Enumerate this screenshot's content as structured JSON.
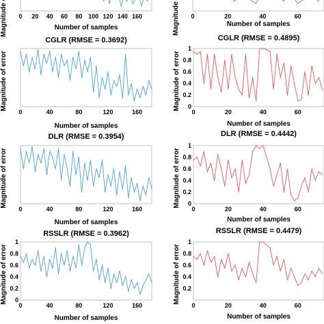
{
  "chart_data": [
    {
      "id": "top-left-partial",
      "type": "line",
      "title": "",
      "xlabel": "Number of samples",
      "ylabel": "",
      "xlim": [
        0,
        180
      ],
      "ylim": [
        0,
        1
      ],
      "xticks": [
        0,
        20,
        40,
        60,
        80,
        100,
        120,
        140,
        160
      ],
      "yticks": [],
      "series": [
        {
          "color": "#4a9fdc",
          "x": [
            110,
            114,
            118,
            122,
            126,
            130,
            134,
            138,
            142,
            146,
            150,
            154,
            158,
            162,
            166,
            170,
            174,
            178
          ],
          "y": [
            0.8,
            0.4,
            0.7,
            0.3,
            0.9,
            0.5,
            0.7,
            0.2,
            0.6,
            0.4,
            0.8,
            0.3,
            0.5,
            0.7,
            0.2,
            0.6,
            0.4,
            0.8
          ]
        }
      ]
    },
    {
      "id": "top-right-partial",
      "type": "line",
      "title": "",
      "xlabel": "Number of samples",
      "ylabel": "",
      "xlim": [
        0,
        75
      ],
      "ylim": [
        0,
        1
      ],
      "xticks": [
        0,
        20,
        40,
        60
      ],
      "yticks": [],
      "series": [
        {
          "color": "#e05a5a",
          "x": [
            20,
            24,
            28,
            32,
            36,
            40,
            44,
            48,
            52,
            56,
            60,
            64,
            68,
            72
          ],
          "y": [
            0.6,
            0.4,
            0.7,
            0.5,
            0.3,
            0.8,
            0.5,
            0.6,
            0.4,
            0.7,
            0.3,
            0.5,
            0.6,
            0.4
          ]
        }
      ]
    },
    {
      "id": "cglr-left",
      "type": "line",
      "title": "CGLR (RMSE = 0.3692)",
      "xlabel": "Number of samples",
      "ylabel": "Magnitude of error",
      "xlim": [
        0,
        180
      ],
      "ylim": [
        0,
        1
      ],
      "xticks": [
        0,
        40,
        80,
        120,
        160
      ],
      "yticks": [],
      "series": [
        {
          "color": "#4a9fdc",
          "x": [
            0,
            4,
            8,
            12,
            16,
            20,
            24,
            28,
            32,
            36,
            40,
            44,
            48,
            52,
            56,
            60,
            64,
            68,
            72,
            76,
            80,
            84,
            88,
            92,
            96,
            100,
            104,
            108,
            112,
            116,
            120,
            124,
            128,
            132,
            136,
            140,
            144,
            148,
            152,
            156,
            160,
            164,
            168,
            172,
            176,
            180
          ],
          "y": [
            0.95,
            0.7,
            0.9,
            0.6,
            0.85,
            0.65,
            0.98,
            0.55,
            0.9,
            0.75,
            0.95,
            0.6,
            0.85,
            0.5,
            0.9,
            0.7,
            0.8,
            0.45,
            0.85,
            0.65,
            0.95,
            0.5,
            0.8,
            0.6,
            0.85,
            0.25,
            0.7,
            0.15,
            0.5,
            0.3,
            0.6,
            0.2,
            0.45,
            0.35,
            0.55,
            0.15,
            0.9,
            0.2,
            0.4,
            0.1,
            0.3,
            0.15,
            0.35,
            0.2,
            0.45,
            0.3
          ]
        }
      ]
    },
    {
      "id": "cglr-right",
      "type": "line",
      "title": "CGLR (RMSE = 0.4895)",
      "xlabel": "Number of samples",
      "ylabel": "Magnitude of error",
      "xlim": [
        0,
        75
      ],
      "ylim": [
        0,
        1
      ],
      "xticks": [
        0,
        20,
        40,
        60
      ],
      "yticks": [
        0,
        0.2,
        0.4,
        0.6,
        0.8,
        1
      ],
      "series": [
        {
          "color": "#e05a5a",
          "x": [
            0,
            2,
            4,
            6,
            8,
            10,
            12,
            14,
            16,
            18,
            20,
            22,
            24,
            26,
            28,
            30,
            32,
            34,
            36,
            38,
            40,
            42,
            44,
            46,
            48,
            50,
            52,
            54,
            56,
            58,
            60,
            62,
            64,
            66,
            68,
            70,
            72,
            74
          ],
          "y": [
            0.95,
            0.9,
            0.95,
            0.4,
            0.9,
            0.3,
            0.9,
            0.5,
            0.25,
            0.8,
            0.3,
            0.9,
            0.5,
            0.3,
            0.2,
            0.9,
            0.15,
            0.5,
            0.1,
            1.0,
            1.0,
            0.98,
            0.95,
            0.3,
            0.9,
            0.5,
            0.75,
            0.2,
            0.7,
            0.4,
            0.1,
            0.12,
            0.6,
            0.2,
            0.7,
            0.4,
            0.5,
            0.3
          ]
        }
      ]
    },
    {
      "id": "dlr-left",
      "type": "line",
      "title": "DLR (RMSE = 0.3954)",
      "xlabel": "Number of samples",
      "ylabel": "Magnitude of error",
      "xlim": [
        0,
        180
      ],
      "ylim": [
        0,
        1
      ],
      "xticks": [
        0,
        40,
        80,
        120,
        160
      ],
      "yticks": [],
      "series": [
        {
          "color": "#4a9fdc",
          "x": [
            0,
            4,
            8,
            12,
            16,
            20,
            24,
            28,
            32,
            36,
            40,
            44,
            48,
            52,
            56,
            60,
            64,
            68,
            72,
            76,
            80,
            84,
            88,
            92,
            96,
            100,
            104,
            108,
            112,
            116,
            120,
            124,
            128,
            132,
            136,
            140,
            144,
            148,
            152,
            156,
            160,
            164,
            168,
            172,
            176,
            180
          ],
          "y": [
            0.95,
            0.6,
            0.9,
            0.7,
            0.98,
            0.55,
            0.85,
            0.7,
            0.95,
            0.5,
            0.9,
            0.8,
            0.6,
            0.95,
            0.4,
            0.85,
            0.6,
            0.3,
            0.9,
            0.5,
            0.8,
            0.2,
            0.7,
            0.4,
            0.75,
            0.3,
            0.6,
            0.45,
            0.75,
            0.2,
            0.5,
            0.3,
            0.6,
            0.15,
            0.55,
            0.25,
            0.65,
            0.1,
            0.45,
            0.2,
            0.35,
            0.05,
            0.3,
            0.15,
            0.45,
            0.25
          ]
        }
      ]
    },
    {
      "id": "dlr-right",
      "type": "line",
      "title": "DLR (RMSE = 0.4442)",
      "xlabel": "Number of samples",
      "ylabel": "Magnitude of error",
      "xlim": [
        0,
        75
      ],
      "ylim": [
        0,
        1
      ],
      "xticks": [
        0,
        20,
        40,
        60
      ],
      "yticks": [
        0,
        0.2,
        0.4,
        0.6,
        0.8,
        1
      ],
      "series": [
        {
          "color": "#e05a5a",
          "x": [
            0,
            2,
            4,
            6,
            8,
            10,
            12,
            14,
            16,
            18,
            20,
            22,
            24,
            26,
            28,
            30,
            32,
            34,
            36,
            38,
            40,
            42,
            44,
            46,
            48,
            50,
            52,
            54,
            56,
            58,
            60,
            62,
            64,
            66,
            68,
            70,
            72,
            74
          ],
          "y": [
            0.75,
            0.8,
            0.65,
            0.9,
            0.55,
            0.7,
            0.4,
            0.85,
            0.6,
            0.3,
            0.75,
            0.45,
            0.6,
            0.2,
            0.75,
            0.35,
            0.5,
            0.9,
            1.0,
            0.95,
            1.0,
            0.8,
            0.6,
            0.3,
            0.5,
            0.7,
            0.2,
            0.6,
            0.15,
            0.05,
            0.1,
            0.3,
            0.45,
            0.2,
            0.6,
            0.4,
            0.55,
            0.5
          ]
        }
      ]
    },
    {
      "id": "rsslr-left",
      "type": "line",
      "title": "RSSLR (RMSE = 0.3962)",
      "xlabel": "Number of samples",
      "ylabel": "Magnitude of error",
      "xlim": [
        0,
        180
      ],
      "ylim": [
        0,
        1
      ],
      "xticks": [
        0,
        40,
        80,
        120,
        160
      ],
      "yticks": [
        0,
        0.2,
        0.4,
        0.6,
        0.8,
        1
      ],
      "series": [
        {
          "color": "#4a9fdc",
          "x": [
            0,
            4,
            8,
            12,
            16,
            20,
            24,
            28,
            32,
            36,
            40,
            44,
            48,
            52,
            56,
            60,
            64,
            68,
            72,
            76,
            80,
            84,
            88,
            92,
            96,
            100,
            104,
            108,
            112,
            116,
            120,
            124,
            128,
            132,
            136,
            140,
            144,
            148,
            152,
            156,
            160,
            164,
            168,
            172,
            176,
            180
          ],
          "y": [
            0.75,
            0.65,
            0.8,
            0.55,
            0.7,
            0.6,
            0.85,
            0.5,
            0.75,
            0.4,
            0.7,
            0.55,
            0.9,
            0.45,
            0.8,
            0.6,
            0.85,
            0.5,
            0.75,
            0.55,
            0.95,
            0.6,
            0.9,
            1.0,
            0.95,
            0.5,
            0.7,
            0.35,
            0.6,
            0.3,
            0.55,
            0.2,
            0.45,
            0.3,
            0.5,
            0.25,
            0.4,
            0.15,
            0.35,
            0.2,
            0.3,
            0.1,
            0.25,
            0.35,
            0.45,
            0.3
          ]
        }
      ]
    },
    {
      "id": "rsslr-right",
      "type": "line",
      "title": "RSSLR (RMSE = 0.4479)",
      "xlabel": "Number of samples",
      "ylabel": "Magnitude of error",
      "xlim": [
        0,
        75
      ],
      "ylim": [
        0,
        1
      ],
      "xticks": [
        0,
        20,
        40,
        60
      ],
      "yticks": [
        0.2,
        0.4,
        0.6,
        0.8,
        1
      ],
      "series": [
        {
          "color": "#e05a5a",
          "x": [
            0,
            2,
            4,
            6,
            8,
            10,
            12,
            14,
            16,
            18,
            20,
            22,
            24,
            26,
            28,
            30,
            32,
            34,
            36,
            38,
            40,
            42,
            44,
            46,
            48,
            50,
            52,
            54,
            56,
            58,
            60,
            62,
            64,
            66,
            68,
            70,
            72,
            74
          ],
          "y": [
            0.75,
            0.7,
            0.8,
            0.6,
            0.85,
            0.65,
            0.75,
            0.4,
            0.7,
            0.55,
            0.8,
            0.5,
            0.6,
            0.35,
            0.55,
            0.4,
            0.65,
            0.45,
            0.3,
            1.0,
            1.0,
            0.95,
            0.9,
            0.6,
            0.75,
            0.5,
            0.7,
            0.35,
            0.55,
            0.4,
            0.25,
            0.3,
            0.45,
            0.35,
            0.5,
            0.4,
            0.55,
            0.45
          ]
        }
      ]
    }
  ]
}
